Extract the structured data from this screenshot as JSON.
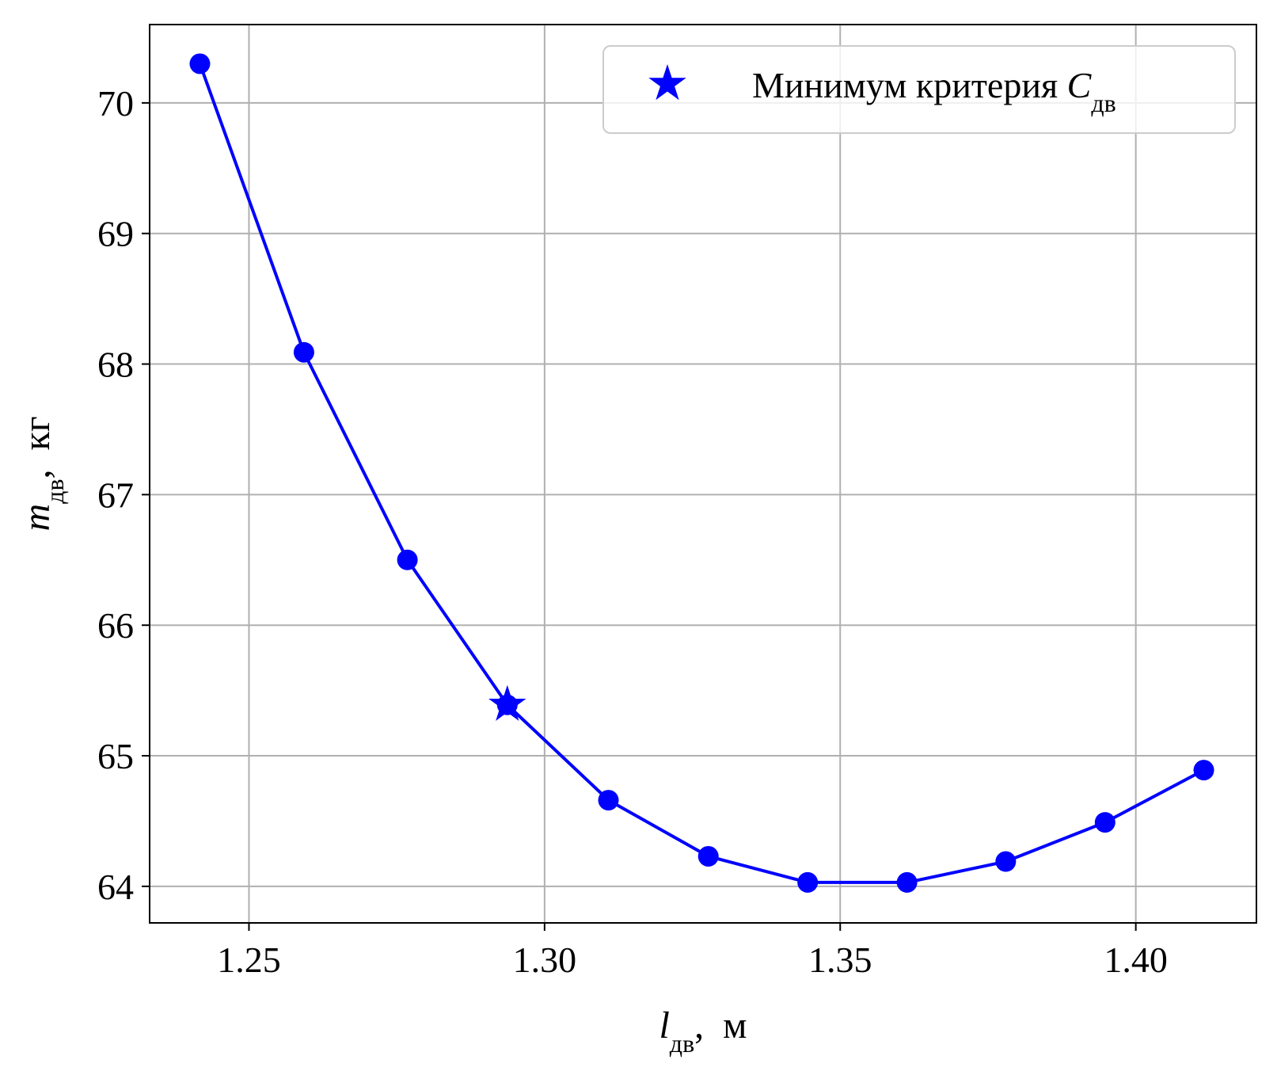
{
  "chart_data": {
    "type": "line",
    "xlabel": {
      "symbol": "l",
      "sub": "дв",
      "unit": ",  м"
    },
    "ylabel": {
      "symbol": "m",
      "sub": "дв",
      "unit": ",  кг"
    },
    "xlim": [
      1.2332,
      1.4204
    ],
    "ylim": [
      63.72,
      70.6
    ],
    "xticks": [
      1.25,
      1.3,
      1.35,
      1.4
    ],
    "xtick_labels": [
      "1.25",
      "1.30",
      "1.35",
      "1.40"
    ],
    "yticks": [
      64,
      65,
      66,
      67,
      68,
      69,
      70
    ],
    "ytick_labels": [
      "64",
      "65",
      "66",
      "67",
      "68",
      "69",
      "70"
    ],
    "grid": true,
    "color": "#0000ff",
    "series": [
      {
        "marker": "circle",
        "x": [
          1.2417,
          1.2593,
          1.2768,
          1.2937,
          1.3108,
          1.3277,
          1.3445,
          1.3613,
          1.378,
          1.3948,
          1.4115
        ],
        "y": [
          70.3,
          68.09,
          66.5,
          65.39,
          64.66,
          64.23,
          64.03,
          64.03,
          64.19,
          64.49,
          64.89
        ]
      }
    ],
    "highlight": {
      "marker": "star",
      "x": 1.2937,
      "y": 65.39
    },
    "legend": {
      "location": "top-right",
      "entries": [
        {
          "marker": "star",
          "label": "Минимум критерия ",
          "symbol": "C",
          "sub": "дв"
        }
      ]
    }
  }
}
